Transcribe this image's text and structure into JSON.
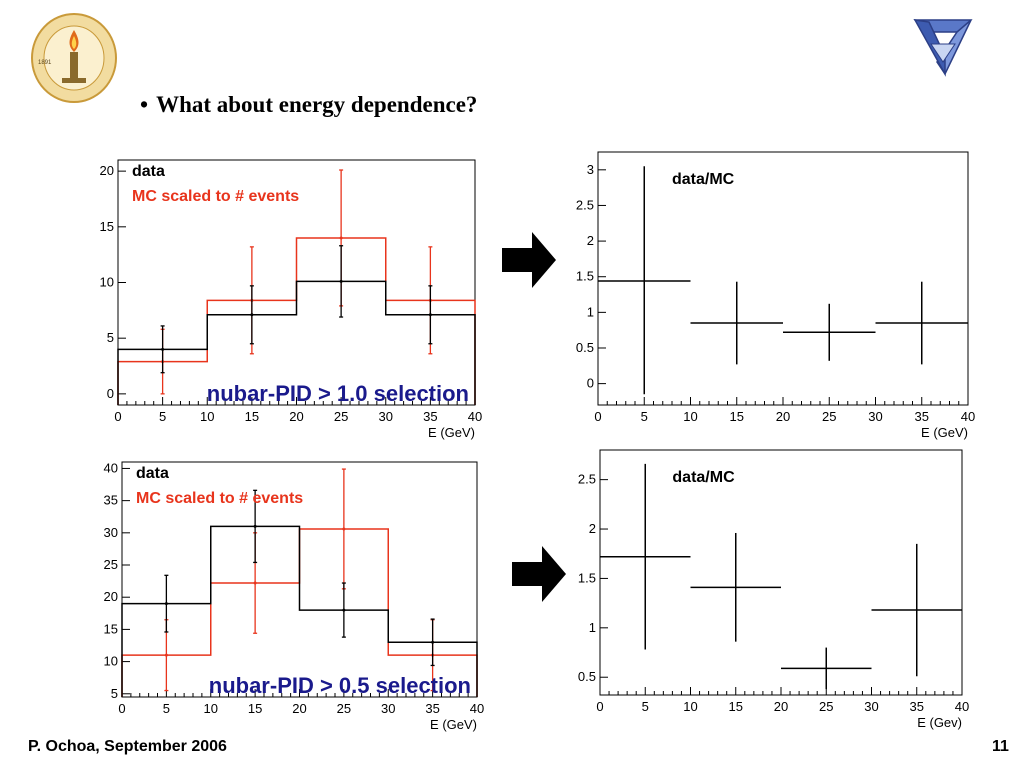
{
  "slide": {
    "bullet": "What about energy dependence?",
    "footer_left": "P. Ochoa, September 2006",
    "footer_right": "11",
    "logos": [
      {
        "icon": "caltech-seal-icon",
        "seal_text": "CALIFORNIA INSTITUTE OF TECHNOLOGY",
        "year": "1891"
      },
      {
        "icon": "minos-triangle-logo-icon"
      }
    ],
    "colors": {
      "data": "#000000",
      "mc": "#e8341c",
      "selection_label": "#1a1a8c"
    }
  },
  "chart_data": [
    {
      "type": "histogram",
      "xlabel": "E (GeV)",
      "xlim": [
        0,
        40
      ],
      "ylim": [
        -1,
        21
      ],
      "xticks": [
        0,
        5,
        10,
        15,
        20,
        25,
        30,
        35,
        40
      ],
      "yticks": [
        0,
        5,
        10,
        15,
        20
      ],
      "grid": false,
      "legend_position": "top-left",
      "bin_edges": [
        0,
        10,
        20,
        30,
        40
      ],
      "bin_centers": [
        5,
        15,
        25,
        35
      ],
      "series": [
        {
          "name": "data",
          "color": "#000000",
          "values": [
            4,
            7.1,
            10.1,
            7.1
          ],
          "errors": [
            2.1,
            2.6,
            3.2,
            2.6
          ]
        },
        {
          "name": "MC scaled to # events",
          "color": "#e8341c",
          "values": [
            2.9,
            8.4,
            14,
            8.4
          ],
          "errors": [
            2.9,
            4.8,
            6.1,
            4.8
          ]
        }
      ],
      "annotation": "nubar-PID > 1.0 selection"
    },
    {
      "type": "scatter-errorbar",
      "xlabel": "E (GeV)",
      "xlim": [
        0,
        40
      ],
      "ylim": [
        -0.3,
        3.25
      ],
      "xticks": [
        0,
        5,
        10,
        15,
        20,
        25,
        30,
        35,
        40
      ],
      "yticks": [
        0,
        0.5,
        1,
        1.5,
        2,
        2.5,
        3
      ],
      "grid": false,
      "label": "data/MC",
      "points": [
        {
          "x": 5,
          "y": 1.44,
          "xerr": 5,
          "ylo": -0.15,
          "yhi": 3.05
        },
        {
          "x": 15,
          "y": 0.85,
          "xerr": 5,
          "ylo": 0.27,
          "yhi": 1.43
        },
        {
          "x": 25,
          "y": 0.72,
          "xerr": 5,
          "ylo": 0.32,
          "yhi": 1.12
        },
        {
          "x": 35,
          "y": 0.85,
          "xerr": 5,
          "ylo": 0.27,
          "yhi": 1.43
        }
      ]
    },
    {
      "type": "histogram",
      "xlabel": "E (GeV)",
      "xlim": [
        0,
        40
      ],
      "ylim": [
        4.5,
        41
      ],
      "xticks": [
        0,
        5,
        10,
        15,
        20,
        25,
        30,
        35,
        40
      ],
      "yticks": [
        5,
        10,
        15,
        20,
        25,
        30,
        35,
        40
      ],
      "grid": false,
      "legend_position": "top-left",
      "bin_edges": [
        0,
        10,
        20,
        30,
        40
      ],
      "bin_centers": [
        5,
        15,
        25,
        35
      ],
      "series": [
        {
          "name": "data",
          "color": "#000000",
          "values": [
            19,
            31,
            18,
            13
          ],
          "errors": [
            4.4,
            5.6,
            4.2,
            3.6
          ]
        },
        {
          "name": "MC scaled to # events",
          "color": "#e8341c",
          "values": [
            11,
            22.2,
            30.6,
            11
          ],
          "errors": [
            5.5,
            7.8,
            9.3,
            5.5
          ]
        }
      ],
      "annotation": "nubar-PID > 0.5 selection"
    },
    {
      "type": "scatter-errorbar",
      "xlabel": "E (Gev)",
      "xlim": [
        0,
        40
      ],
      "ylim": [
        0.32,
        2.8
      ],
      "xticks": [
        0,
        5,
        10,
        15,
        20,
        25,
        30,
        35,
        40
      ],
      "yticks": [
        0.5,
        1,
        1.5,
        2,
        2.5
      ],
      "grid": false,
      "label": "data/MC",
      "points": [
        {
          "x": 5,
          "y": 1.72,
          "xerr": 5,
          "ylo": 0.78,
          "yhi": 2.66
        },
        {
          "x": 15,
          "y": 1.41,
          "xerr": 5,
          "ylo": 0.86,
          "yhi": 1.96
        },
        {
          "x": 25,
          "y": 0.59,
          "xerr": 5,
          "ylo": 0.38,
          "yhi": 0.8
        },
        {
          "x": 35,
          "y": 1.18,
          "xerr": 5,
          "ylo": 0.51,
          "yhi": 1.85
        }
      ]
    }
  ]
}
